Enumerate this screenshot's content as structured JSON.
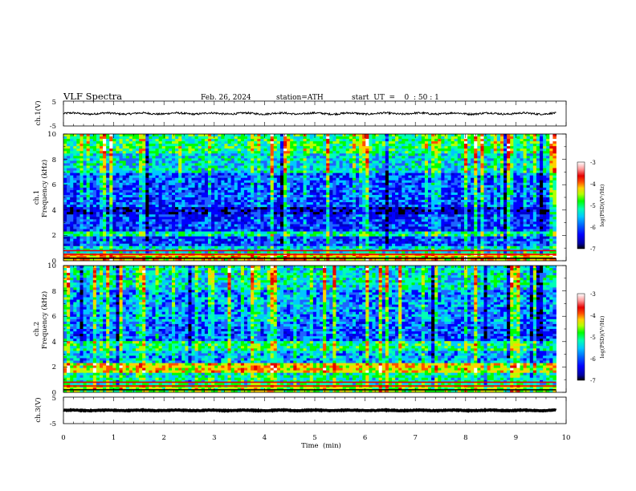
{
  "header": {
    "title": "VLF  Spectra",
    "date": "Feb. 26, 2024",
    "station": "station=ATH",
    "start_ut": "start  UT  =    0  : 50 : 1"
  },
  "colors": {
    "background": "#ffffff",
    "axis": "#000000",
    "waveform": "#000000",
    "colormap": [
      "#000000",
      "#0000c8",
      "#0000ff",
      "#1e64ff",
      "#00c8ff",
      "#00ffb4",
      "#00ff00",
      "#b4ff00",
      "#ffd200",
      "#ff5000",
      "#e60000",
      "#ffffff"
    ]
  },
  "chart_data": [
    {
      "type": "line",
      "id": "ch1-waveform",
      "ylabel": "ch.1(V)",
      "ylim": [
        -5,
        5
      ],
      "yticks": [
        "5",
        "-5"
      ],
      "xlim": [
        0,
        10
      ],
      "description_values": {
        "mean_level": 0,
        "amplitude_approx": 0.8
      },
      "x_end": 9.8
    },
    {
      "type": "heatmap",
      "id": "ch1-spectrogram",
      "ylabel_channel": "ch.1",
      "ylabel": "Frequency  (kHz)",
      "ylim": [
        0,
        10
      ],
      "yticks": [
        "0",
        "2",
        "4",
        "6",
        "8",
        "10"
      ],
      "xlim": [
        0,
        10
      ],
      "x_end": 9.8,
      "colorbar": {
        "label": "log(PSD)(V²/Hz)",
        "range": [
          -7,
          -3
        ],
        "ticks": [
          "-3",
          "-4",
          "-5",
          "-6",
          "-7"
        ]
      },
      "level_profile": [
        {
          "f": [
            0,
            0.5
          ],
          "level": -4.2
        },
        {
          "f": [
            0.5,
            1.2
          ],
          "level": -5.4
        },
        {
          "f": [
            1.2,
            2.0
          ],
          "level": -6.0
        },
        {
          "f": [
            2.0,
            2.4
          ],
          "level": -5.2
        },
        {
          "f": [
            2.4,
            3.6
          ],
          "level": -6.1
        },
        {
          "f": [
            3.6,
            4.2
          ],
          "level": -6.4
        },
        {
          "f": [
            4.2,
            5.0
          ],
          "level": -6.0
        },
        {
          "f": [
            5.0,
            7.0
          ],
          "level": -5.9
        },
        {
          "f": [
            7.0,
            8.5
          ],
          "level": -5.4
        },
        {
          "f": [
            8.5,
            10
          ],
          "level": -5.0
        }
      ]
    },
    {
      "type": "heatmap",
      "id": "ch2-spectrogram",
      "ylabel_channel": "ch.2",
      "ylabel": "Frequency  (kHz)",
      "ylim": [
        0,
        10
      ],
      "yticks": [
        "0",
        "2",
        "4",
        "6",
        "8",
        "10"
      ],
      "xlim": [
        0,
        10
      ],
      "x_end": 9.8,
      "colorbar": {
        "label": "log(PSD)(V²/Hz)",
        "range": [
          -7,
          -3
        ],
        "ticks": [
          "-3",
          "-4",
          "-5",
          "-6",
          "-7"
        ]
      },
      "level_profile": [
        {
          "f": [
            0,
            0.5
          ],
          "level": -4.6
        },
        {
          "f": [
            0.5,
            1.6
          ],
          "level": -5.2
        },
        {
          "f": [
            1.6,
            2.3
          ],
          "level": -4.3
        },
        {
          "f": [
            2.3,
            3.2
          ],
          "level": -5.6
        },
        {
          "f": [
            3.2,
            4.0
          ],
          "level": -5.1
        },
        {
          "f": [
            4.0,
            5.5
          ],
          "level": -5.9
        },
        {
          "f": [
            5.5,
            8.0
          ],
          "level": -5.7
        },
        {
          "f": [
            8.0,
            10
          ],
          "level": -5.3
        }
      ]
    },
    {
      "type": "line",
      "id": "ch3-waveform",
      "ylabel": "ch.3(V)",
      "ylim": [
        -5,
        5
      ],
      "yticks": [
        "5",
        "-5"
      ],
      "xlim": [
        0,
        10
      ],
      "description_values": {
        "mean_level": 0,
        "amplitude_approx": 0.3
      },
      "x_end": 9.8,
      "xlabel": "Time  (min)",
      "xticks": [
        "0",
        "1",
        "2",
        "3",
        "4",
        "5",
        "6",
        "7",
        "8",
        "9",
        "10"
      ]
    }
  ]
}
